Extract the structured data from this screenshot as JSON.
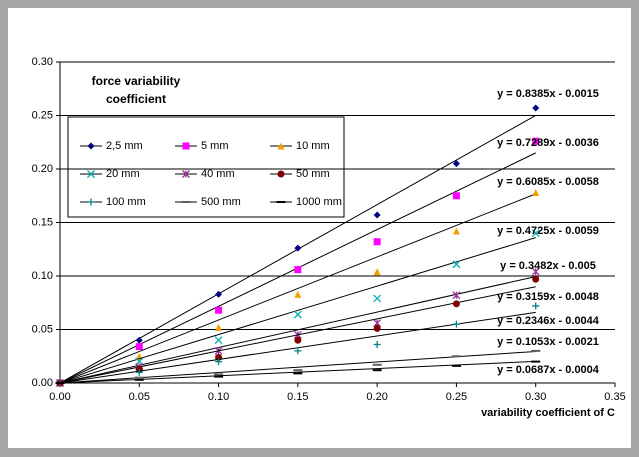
{
  "chart_data": {
    "type": "scatter",
    "title": "force variability coefficient",
    "x_label": "variability coefficient of C",
    "x": [
      0,
      0.05,
      0.1,
      0.15,
      0.2,
      0.25,
      0.3
    ],
    "xlim": [
      0,
      0.35
    ],
    "xticks": [
      {
        "value": 0,
        "label": "0.00"
      },
      {
        "value": 0.05,
        "label": "0.05"
      },
      {
        "value": 0.1,
        "label": "0.10"
      },
      {
        "value": 0.15,
        "label": "0.15"
      },
      {
        "value": 0.2,
        "label": "0.20"
      },
      {
        "value": 0.25,
        "label": "0.25"
      },
      {
        "value": 0.3,
        "label": "0.30"
      },
      {
        "value": 0.35,
        "label": "0.35"
      }
    ],
    "ylim": [
      0,
      0.3
    ],
    "yticks": [
      {
        "value": 0,
        "label": "0.00"
      },
      {
        "value": 0.05,
        "label": "0.05"
      },
      {
        "value": 0.1,
        "label": "0.10"
      },
      {
        "value": 0.15,
        "label": "0.15"
      },
      {
        "value": 0.2,
        "label": "0.20"
      },
      {
        "value": 0.25,
        "label": "0.25"
      },
      {
        "value": 0.3,
        "label": "0.30"
      }
    ],
    "grid": true,
    "series": [
      {
        "name": "2,5 mm",
        "color": "#000080",
        "marker": "diamond",
        "values": [
          0,
          0.04,
          0.083,
          0.126,
          0.157,
          0.205,
          0.257
        ],
        "trend": {
          "slope": 0.8385,
          "intercept": -0.0015,
          "label": "y = 0.8385x - 0.0015"
        }
      },
      {
        "name": "5 mm",
        "color": "#ff00ff",
        "marker": "square",
        "values": [
          0,
          0.034,
          0.068,
          0.106,
          0.132,
          0.175,
          0.226
        ],
        "trend": {
          "slope": 0.7289,
          "intercept": -0.0036,
          "label": "y = 0.7289x - 0.0036"
        }
      },
      {
        "name": "10 mm",
        "color": "#f0a000",
        "marker": "triangle",
        "values": [
          0,
          0.025,
          0.052,
          0.083,
          0.104,
          0.142,
          0.178
        ],
        "trend": {
          "slope": 0.6085,
          "intercept": -0.0058,
          "label": "y = 0.6085x - 0.0058"
        }
      },
      {
        "name": "20 mm",
        "color": "#00b0b0",
        "marker": "x",
        "values": [
          0,
          0.02,
          0.04,
          0.064,
          0.079,
          0.111,
          0.14
        ],
        "trend": {
          "slope": 0.4725,
          "intercept": -0.0059,
          "label": "y = 0.4725x - 0.0059"
        }
      },
      {
        "name": "40 mm",
        "color": "#993399",
        "marker": "star",
        "values": [
          0,
          0.015,
          0.03,
          0.045,
          0.056,
          0.082,
          0.104
        ],
        "trend": {
          "slope": 0.3482,
          "intercept": -0.005,
          "label": "y = 0.3482x - 0.005"
        }
      },
      {
        "name": "50 mm",
        "color": "#800000",
        "marker": "circle",
        "values": [
          0,
          0.013,
          0.024,
          0.04,
          0.051,
          0.074,
          0.097
        ],
        "trend": {
          "slope": 0.3159,
          "intercept": -0.0048,
          "label": "y = 0.3159x - 0.0048"
        }
      },
      {
        "name": "100 mm",
        "color": "#008080",
        "marker": "plus",
        "values": [
          0,
          0.01,
          0.02,
          0.03,
          0.036,
          0.055,
          0.072
        ],
        "trend": {
          "slope": 0.2346,
          "intercept": -0.0044,
          "label": "y = 0.2346x - 0.0044"
        }
      },
      {
        "name": "500 mm",
        "color": "#606060",
        "marker": "dash",
        "values": [
          0,
          0.005,
          0.008,
          0.012,
          0.017,
          0.025,
          0.03
        ],
        "trend": {
          "slope": 0.1053,
          "intercept": -0.0021,
          "label": "y = 0.1053x - 0.0021"
        }
      },
      {
        "name": "1000 mm",
        "color": "#000000",
        "marker": "dash",
        "values": [
          0,
          0.003,
          0.006,
          0.009,
          0.012,
          0.016,
          0.02
        ],
        "trend": {
          "slope": 0.0687,
          "intercept": -0.0004,
          "label": "y = 0.0687x - 0.0004"
        }
      }
    ]
  }
}
